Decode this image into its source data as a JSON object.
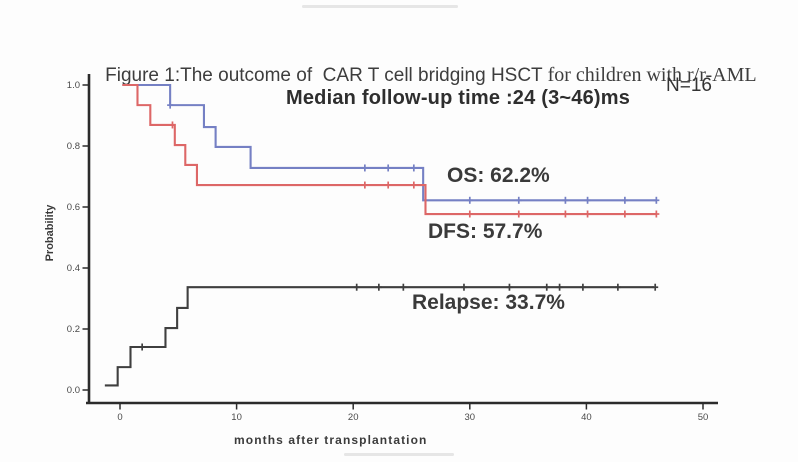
{
  "figure": {
    "title_sans": "Figure 1:The outcome of  CAR T cell bridging HSCT ",
    "title_serif": "for children with r/r-AML",
    "annotation_median": "Median follow-up time :24 (3~46)ms",
    "annotation_n": "N=16"
  },
  "chart_data": {
    "type": "line",
    "subtype": "kaplan_meier_step",
    "title": "Figure 1:The outcome of CAR T cell bridging HSCT for children with r/r-AML",
    "xlabel": "months after transplantation",
    "ylabel": "Probability",
    "xticks": [
      0,
      10,
      20,
      30,
      40,
      50
    ],
    "ytick_values": [
      0,
      0.2,
      0.4,
      0.6,
      0.8,
      1.0
    ],
    "ytick_labels": [
      "0.0",
      "0.2",
      "0.4",
      "0.6",
      "0.8",
      "1.0"
    ],
    "xlim": [
      -2.7,
      51.5
    ],
    "ylim": [
      0,
      1.0
    ],
    "grid": false,
    "legend_position": "inline-labels",
    "n_patients": 16,
    "median_followup_months": 24,
    "followup_range_months": [
      3,
      46
    ],
    "colors": {
      "os": "#7580c4",
      "dfs": "#dd6767",
      "relapse": "#3f3f3f",
      "axis": "#2b2b2b"
    },
    "series": [
      {
        "name": "OS",
        "label": "OS: 62.2%",
        "final_value_pct": 62.2,
        "color": "#7580c4",
        "points": [
          [
            0.2,
            1.0
          ],
          [
            4.3,
            0.934
          ],
          [
            7.2,
            0.862
          ],
          [
            8.2,
            0.797
          ],
          [
            11.2,
            0.728
          ],
          [
            26.0,
            0.622
          ]
        ],
        "end_x": 46,
        "censors": [
          [
            4.3,
            0.934
          ],
          [
            21,
            0.728
          ],
          [
            23,
            0.728
          ],
          [
            25.2,
            0.728
          ],
          [
            30,
            0.622
          ],
          [
            34.2,
            0.622
          ],
          [
            38.2,
            0.622
          ],
          [
            40.1,
            0.622
          ],
          [
            43.3,
            0.622
          ],
          [
            46,
            0.622
          ]
        ]
      },
      {
        "name": "DFS",
        "label": "DFS: 57.7%",
        "final_value_pct": 57.7,
        "color": "#dd6767",
        "points": [
          [
            0.2,
            1.0
          ],
          [
            1.5,
            0.934
          ],
          [
            2.6,
            0.869
          ],
          [
            4.7,
            0.803
          ],
          [
            5.6,
            0.738
          ],
          [
            6.6,
            0.672
          ],
          [
            26.2,
            0.577
          ]
        ],
        "end_x": 46,
        "censors": [
          [
            4.5,
            0.869
          ],
          [
            21,
            0.672
          ],
          [
            23,
            0.672
          ],
          [
            25.2,
            0.672
          ],
          [
            30,
            0.577
          ],
          [
            34.2,
            0.577
          ],
          [
            38.2,
            0.577
          ],
          [
            40.1,
            0.577
          ],
          [
            43.3,
            0.577
          ],
          [
            46,
            0.577
          ]
        ]
      },
      {
        "name": "Relapse",
        "label": "Relapse: 33.7%",
        "final_value_pct": 33.7,
        "color": "#3f3f3f",
        "points": [
          [
            -1.3,
            0.015
          ],
          [
            -0.2,
            0.075
          ],
          [
            0.9,
            0.141
          ],
          [
            3.9,
            0.203
          ],
          [
            4.9,
            0.269
          ],
          [
            5.8,
            0.337
          ]
        ],
        "end_x": 45.8,
        "censors": [
          [
            1.9,
            0.141
          ],
          [
            20.3,
            0.337
          ],
          [
            22.2,
            0.337
          ],
          [
            24.3,
            0.337
          ],
          [
            29.5,
            0.337
          ],
          [
            33.4,
            0.337
          ],
          [
            36.6,
            0.337
          ],
          [
            37.7,
            0.337
          ],
          [
            39.7,
            0.337
          ],
          [
            42.7,
            0.337
          ],
          [
            45.9,
            0.337
          ]
        ]
      }
    ]
  }
}
